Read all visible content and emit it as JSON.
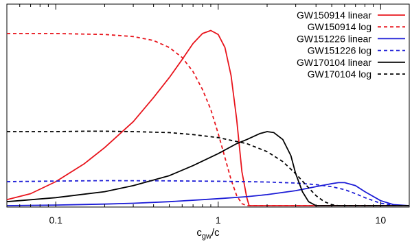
{
  "chart_data": {
    "type": "line",
    "title": "",
    "xlabel": "c_gw/c",
    "xlabel_main": "c",
    "xlabel_sub": "gw",
    "xlabel_tail": "/c",
    "ylabel": "",
    "xscale": "log",
    "xlim": [
      0.05,
      15
    ],
    "ylim": [
      0,
      1
    ],
    "y_tick_labels_shown": false,
    "grid": false,
    "legend_position": "top-right",
    "x_ticks": [
      {
        "value": 0.1,
        "label": "0.1"
      },
      {
        "value": 1,
        "label": "1"
      },
      {
        "value": 10,
        "label": "10"
      }
    ],
    "series": [
      {
        "name": "GW150914 linear",
        "color": "#e8141c",
        "dash": "solid",
        "points": [
          [
            0.05,
            0.03
          ],
          [
            0.07,
            0.06
          ],
          [
            0.1,
            0.12
          ],
          [
            0.15,
            0.21
          ],
          [
            0.2,
            0.29
          ],
          [
            0.3,
            0.42
          ],
          [
            0.4,
            0.54
          ],
          [
            0.5,
            0.64
          ],
          [
            0.6,
            0.73
          ],
          [
            0.7,
            0.81
          ],
          [
            0.8,
            0.86
          ],
          [
            0.9,
            0.875
          ],
          [
            1.0,
            0.855
          ],
          [
            1.1,
            0.79
          ],
          [
            1.2,
            0.65
          ],
          [
            1.3,
            0.43
          ],
          [
            1.4,
            0.17
          ],
          [
            1.5,
            0.04
          ],
          [
            1.55,
            0.0
          ],
          [
            15,
            0.0
          ]
        ]
      },
      {
        "name": "GW150914 log",
        "color": "#e8141c",
        "dash": "dashed",
        "points": [
          [
            0.05,
            0.86
          ],
          [
            0.1,
            0.86
          ],
          [
            0.2,
            0.855
          ],
          [
            0.3,
            0.845
          ],
          [
            0.4,
            0.825
          ],
          [
            0.5,
            0.79
          ],
          [
            0.6,
            0.74
          ],
          [
            0.7,
            0.67
          ],
          [
            0.8,
            0.58
          ],
          [
            0.9,
            0.48
          ],
          [
            1.0,
            0.36
          ],
          [
            1.1,
            0.24
          ],
          [
            1.2,
            0.13
          ],
          [
            1.3,
            0.05
          ],
          [
            1.4,
            0.01
          ],
          [
            1.5,
            0.0
          ],
          [
            15,
            0.0
          ]
        ]
      },
      {
        "name": "GW151226 linear",
        "color": "#1b1bd6",
        "dash": "solid",
        "points": [
          [
            0.05,
            0.0
          ],
          [
            0.1,
            0.003
          ],
          [
            0.2,
            0.008
          ],
          [
            0.3,
            0.012
          ],
          [
            0.5,
            0.02
          ],
          [
            1.0,
            0.035
          ],
          [
            1.5,
            0.045
          ],
          [
            2.0,
            0.055
          ],
          [
            3.0,
            0.075
          ],
          [
            4.0,
            0.095
          ],
          [
            5.0,
            0.11
          ],
          [
            5.5,
            0.115
          ],
          [
            6.0,
            0.115
          ],
          [
            7.0,
            0.1
          ],
          [
            8.0,
            0.07
          ],
          [
            10.0,
            0.025
          ],
          [
            12.0,
            0.005
          ],
          [
            15,
            0.0
          ]
        ]
      },
      {
        "name": "GW151226 log",
        "color": "#1b1bd6",
        "dash": "dashed",
        "points": [
          [
            0.05,
            0.12
          ],
          [
            0.1,
            0.123
          ],
          [
            0.2,
            0.125
          ],
          [
            0.5,
            0.124
          ],
          [
            1.0,
            0.122
          ],
          [
            2.0,
            0.118
          ],
          [
            3.0,
            0.113
          ],
          [
            4.0,
            0.105
          ],
          [
            5.0,
            0.095
          ],
          [
            6.0,
            0.08
          ],
          [
            7.0,
            0.06
          ],
          [
            8.0,
            0.04
          ],
          [
            10.0,
            0.012
          ],
          [
            12.0,
            0.002
          ],
          [
            15,
            0.0
          ]
        ]
      },
      {
        "name": "GW170104 linear",
        "color": "#000000",
        "dash": "solid",
        "points": [
          [
            0.05,
            0.02
          ],
          [
            0.1,
            0.04
          ],
          [
            0.2,
            0.07
          ],
          [
            0.3,
            0.1
          ],
          [
            0.5,
            0.15
          ],
          [
            0.7,
            0.2
          ],
          [
            1.0,
            0.26
          ],
          [
            1.3,
            0.31
          ],
          [
            1.5,
            0.33
          ],
          [
            1.8,
            0.36
          ],
          [
            2.0,
            0.37
          ],
          [
            2.2,
            0.365
          ],
          [
            2.5,
            0.33
          ],
          [
            2.8,
            0.25
          ],
          [
            3.0,
            0.16
          ],
          [
            3.3,
            0.07
          ],
          [
            3.6,
            0.02
          ],
          [
            4.0,
            0.0
          ],
          [
            15,
            0.0
          ]
        ]
      },
      {
        "name": "GW170104 log",
        "color": "#000000",
        "dash": "dashed",
        "points": [
          [
            0.05,
            0.37
          ],
          [
            0.1,
            0.37
          ],
          [
            0.15,
            0.372
          ],
          [
            0.2,
            0.372
          ],
          [
            0.3,
            0.37
          ],
          [
            0.5,
            0.365
          ],
          [
            0.7,
            0.355
          ],
          [
            1.0,
            0.34
          ],
          [
            1.5,
            0.31
          ],
          [
            2.0,
            0.27
          ],
          [
            2.5,
            0.22
          ],
          [
            3.0,
            0.16
          ],
          [
            3.5,
            0.1
          ],
          [
            4.0,
            0.05
          ],
          [
            4.5,
            0.02
          ],
          [
            5.0,
            0.005
          ],
          [
            5.5,
            0.0
          ],
          [
            15,
            0.0
          ]
        ]
      }
    ]
  }
}
